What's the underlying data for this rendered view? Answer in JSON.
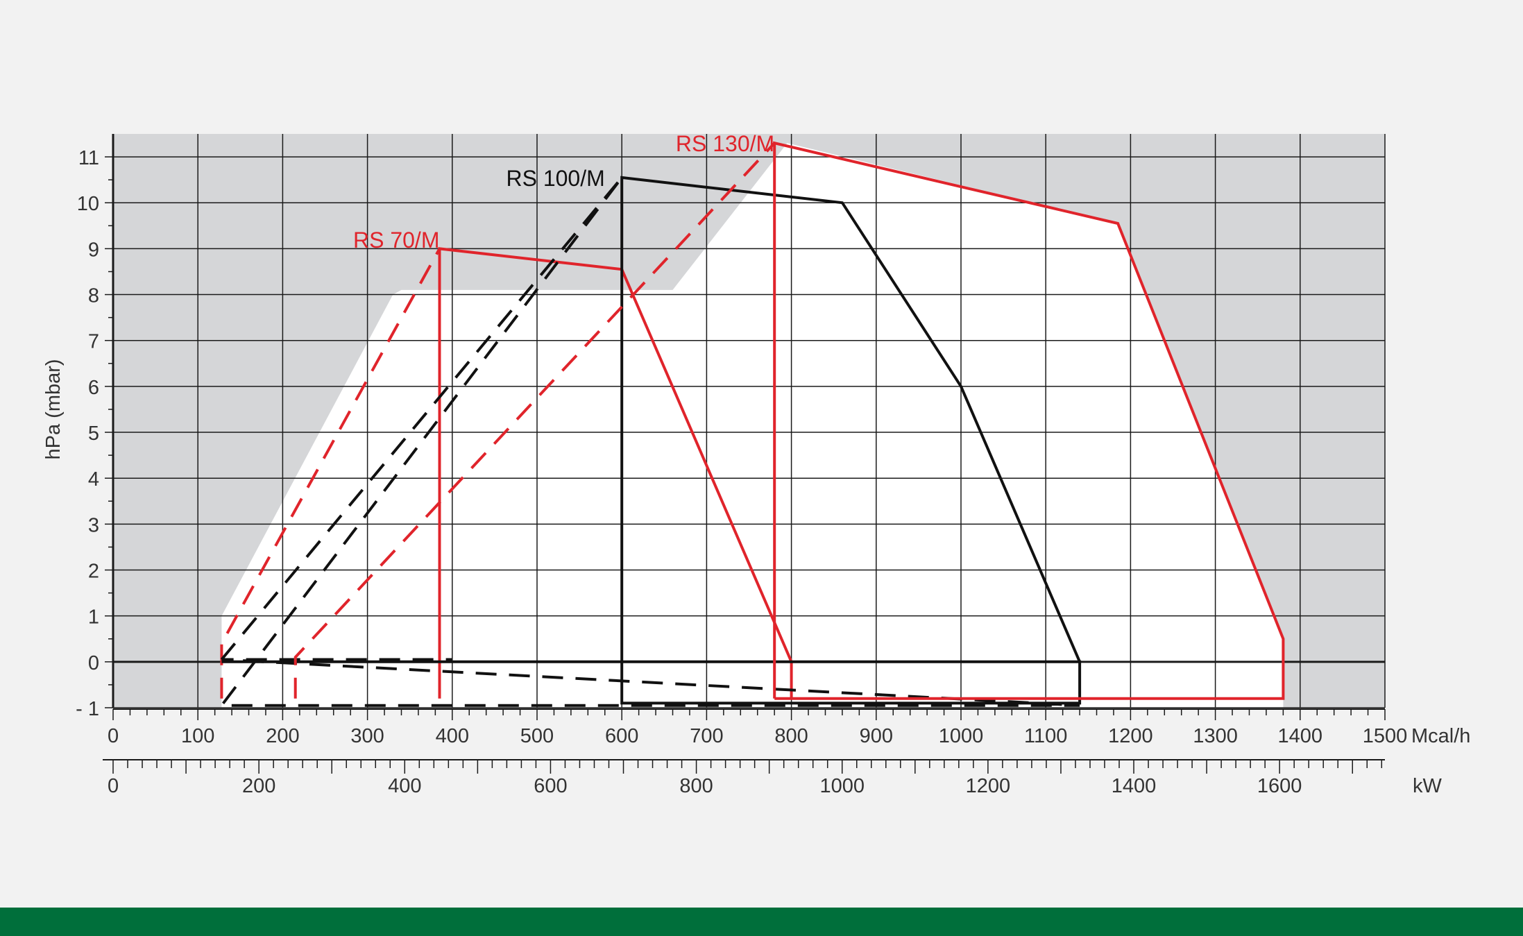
{
  "colors": {
    "background": "#f2f2f2",
    "plot_background": "#d5d6d8",
    "envelope_fill": "#ffffff",
    "grid": "#1a1a1a",
    "red": "#e0242b",
    "black": "#111111",
    "footer": "#006f3b"
  },
  "chart_data": {
    "type": "line",
    "title": "",
    "ylabel": "hPa (mbar)",
    "x_unit_primary": "Mcal/h",
    "x_unit_secondary": "kW",
    "xlim": [
      0,
      1500
    ],
    "ylim": [
      -1,
      11.5
    ],
    "grid": true,
    "x_ticks": [
      {
        "value": 0,
        "label": "0"
      },
      {
        "value": 100,
        "label": "100"
      },
      {
        "value": 200,
        "label": "200"
      },
      {
        "value": 300,
        "label": "300"
      },
      {
        "value": 400,
        "label": "400"
      },
      {
        "value": 500,
        "label": "500"
      },
      {
        "value": 600,
        "label": "600"
      },
      {
        "value": 700,
        "label": "700"
      },
      {
        "value": 800,
        "label": "800"
      },
      {
        "value": 900,
        "label": "900"
      },
      {
        "value": 1000,
        "label": "1000"
      },
      {
        "value": 1100,
        "label": "1100"
      },
      {
        "value": 1200,
        "label": "1200"
      },
      {
        "value": 1300,
        "label": "1300"
      },
      {
        "value": 1400,
        "label": "1400"
      },
      {
        "value": 1500,
        "label": "1500"
      }
    ],
    "y_ticks": [
      {
        "value": -1,
        "label": "- 1"
      },
      {
        "value": 0,
        "label": "0"
      },
      {
        "value": 1,
        "label": "1"
      },
      {
        "value": 2,
        "label": "2"
      },
      {
        "value": 3,
        "label": "3"
      },
      {
        "value": 4,
        "label": "4"
      },
      {
        "value": 5,
        "label": "5"
      },
      {
        "value": 6,
        "label": "6"
      },
      {
        "value": 7,
        "label": "7"
      },
      {
        "value": 8,
        "label": "8"
      },
      {
        "value": 9,
        "label": "9"
      },
      {
        "value": 10,
        "label": "10"
      },
      {
        "value": 11,
        "label": "11"
      }
    ],
    "kw_ticks": [
      {
        "value": 0,
        "label": "0"
      },
      {
        "value": 200,
        "label": "200"
      },
      {
        "value": 400,
        "label": "400"
      },
      {
        "value": 600,
        "label": "600"
      },
      {
        "value": 800,
        "label": "800"
      },
      {
        "value": 1000,
        "label": "1000"
      },
      {
        "value": 1200,
        "label": "1200"
      },
      {
        "value": 1400,
        "label": "1400"
      },
      {
        "value": 1600,
        "label": "1600"
      }
    ],
    "envelope": [
      [
        128,
        -1
      ],
      [
        128,
        1
      ],
      [
        330,
        8
      ],
      [
        340,
        8.1
      ],
      [
        660,
        8.1
      ],
      [
        795,
        11.3
      ],
      [
        1185,
        9.55
      ],
      [
        1380,
        0.5
      ],
      [
        1380,
        -1
      ]
    ],
    "series": [
      {
        "name": "RS 70/M",
        "color": "#e0242b",
        "label_at": [
          385,
          9.2
        ],
        "solid": [
          [
            385,
            -0.8
          ],
          [
            385,
            9.0
          ],
          [
            600,
            8.55
          ],
          [
            800,
            0
          ],
          [
            800,
            -0.8
          ]
        ],
        "dashed": [
          [
            128,
            -0.8
          ],
          [
            128,
            0.4
          ],
          [
            385,
            9.0
          ]
        ]
      },
      {
        "name": "RS 100/M",
        "color": "#111111",
        "label_at": [
          580,
          10.55
        ],
        "solid": [
          [
            128,
            0
          ],
          [
            1140,
            0
          ],
          [
            1140,
            -0.9
          ],
          [
            600,
            -0.9
          ],
          [
            600,
            10.55
          ],
          [
            860,
            10.0
          ],
          [
            1000,
            6.0
          ],
          [
            1140,
            0
          ]
        ],
        "dashed": [
          [
            128,
            0.05
          ],
          [
            600,
            10.55
          ],
          [
            128,
            -0.95
          ],
          [
            1140,
            -0.95
          ],
          [
            128,
            0.05
          ],
          [
            400,
            0.05
          ]
        ]
      },
      {
        "name": "RS 130/M",
        "color": "#e0242b",
        "label_at": [
          780,
          11.3
        ],
        "solid": [
          [
            780,
            -0.8
          ],
          [
            780,
            11.3
          ],
          [
            1185,
            9.55
          ],
          [
            1380,
            0.5
          ],
          [
            1380,
            -0.8
          ],
          [
            780,
            -0.8
          ]
        ],
        "dashed": [
          [
            215,
            -0.8
          ],
          [
            215,
            0.1
          ],
          [
            780,
            11.3
          ]
        ]
      }
    ]
  }
}
